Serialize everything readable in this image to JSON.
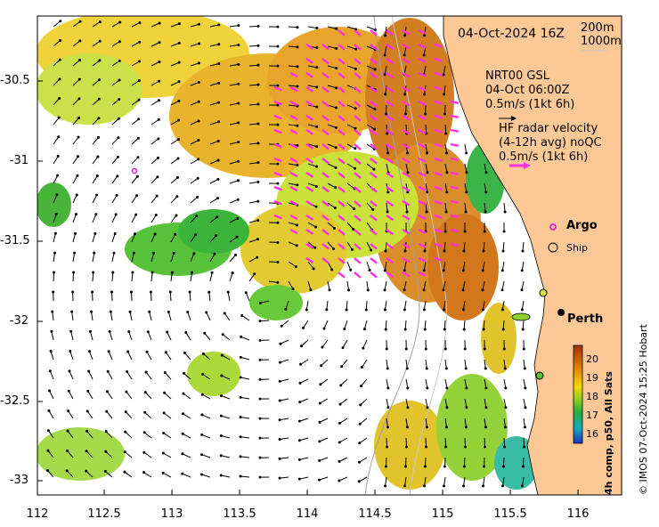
{
  "map": {
    "date_label": "04-Oct-2024 16Z",
    "depth_contours": [
      "200m",
      "1000m"
    ],
    "legend_gsl": [
      "NRT00 GSL",
      "04-Oct 06:00Z",
      "0.5m/s (1kt 6h)"
    ],
    "legend_hf": [
      "HF radar velocity",
      "(4-12h avg) noQC",
      "0.5m/s (1kt 6h)"
    ],
    "argo_label": "Argo",
    "ship_label": "Ship",
    "city_label": "Perth",
    "x_ticks": [
      "112",
      "112.5",
      "113",
      "113.5",
      "114",
      "114.5",
      "115",
      "115.5",
      "116"
    ],
    "y_ticks": [
      "-30.5",
      "-31",
      "-31.5",
      "-32",
      "-32.5",
      "-33"
    ],
    "colorbar_ticks": [
      "20",
      "19",
      "18",
      "17",
      "16"
    ],
    "colorbar_title": "4h comp, p50, All Sats",
    "credit": "© IMOS 07-Oct-2024 15:25 Hobart",
    "colors": {
      "land": "#fcc896",
      "argo": "#e020e0",
      "hf_arrow": "#ff30e0",
      "sst_warm": "#d07010",
      "sst_cool": "#20a040"
    }
  }
}
